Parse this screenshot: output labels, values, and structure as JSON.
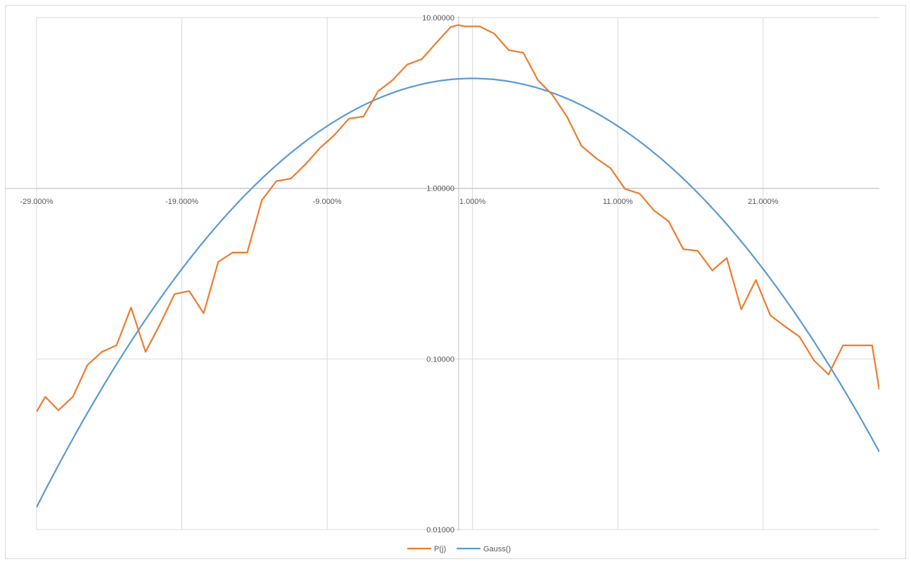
{
  "chart_data": {
    "type": "line",
    "y_scale": "log",
    "ylim": [
      0.01,
      10
    ],
    "xlim": [
      -0.29,
      0.29
    ],
    "grid": true,
    "legend_position": "bottom",
    "x_tick_labels": [
      {
        "value": -0.29,
        "label": "-29.000%"
      },
      {
        "value": -0.19,
        "label": "-19.000%"
      },
      {
        "value": -0.09,
        "label": "-9.000%"
      },
      {
        "value": 0.01,
        "label": "1.000%"
      },
      {
        "value": 0.11,
        "label": "11.000%"
      },
      {
        "value": 0.21,
        "label": "21.000%"
      }
    ],
    "y_tick_labels": [
      {
        "value": 10,
        "label": "10.00000"
      },
      {
        "value": 1,
        "label": "1.00000"
      },
      {
        "value": 0.1,
        "label": "0.10000"
      },
      {
        "value": 0.01,
        "label": "0.01000"
      }
    ],
    "series": [
      {
        "name": "P(j)",
        "color": "#ED7D31",
        "x": [
          -0.29,
          -0.284,
          -0.275,
          -0.265,
          -0.255,
          -0.245,
          -0.235,
          -0.225,
          -0.215,
          -0.205,
          -0.195,
          -0.185,
          -0.175,
          -0.165,
          -0.155,
          -0.145,
          -0.135,
          -0.125,
          -0.115,
          -0.105,
          -0.095,
          -0.085,
          -0.075,
          -0.065,
          -0.055,
          -0.045,
          -0.035,
          -0.025,
          -0.015,
          -0.005,
          0.0,
          0.005,
          0.015,
          0.025,
          0.035,
          0.045,
          0.055,
          0.065,
          0.075,
          0.085,
          0.095,
          0.105,
          0.115,
          0.125,
          0.135,
          0.145,
          0.155,
          0.165,
          0.175,
          0.185,
          0.195,
          0.205,
          0.215,
          0.225,
          0.235,
          0.245,
          0.255,
          0.265,
          0.275,
          0.285,
          0.29
        ],
        "values": [
          0.049,
          0.06,
          0.05,
          0.06,
          0.092,
          0.11,
          0.12,
          0.2,
          0.11,
          0.16,
          0.24,
          0.25,
          0.185,
          0.37,
          0.42,
          0.42,
          0.85,
          1.1,
          1.14,
          1.38,
          1.72,
          2.05,
          2.56,
          2.63,
          3.7,
          4.3,
          5.3,
          5.7,
          7.1,
          8.8,
          9.04,
          8.88,
          8.88,
          8.05,
          6.44,
          6.22,
          4.3,
          3.52,
          2.63,
          1.77,
          1.5,
          1.31,
          0.99,
          0.93,
          0.74,
          0.64,
          0.44,
          0.43,
          0.33,
          0.39,
          0.195,
          0.29,
          0.18,
          0.155,
          0.135,
          0.098,
          0.081,
          0.12,
          0.12,
          0.12,
          0.066
        ]
      },
      {
        "name": "Gauss()",
        "color": "#5B9BD5",
        "mean": 0.01,
        "peak": 4.4,
        "sigma": 0.0882
      }
    ]
  }
}
